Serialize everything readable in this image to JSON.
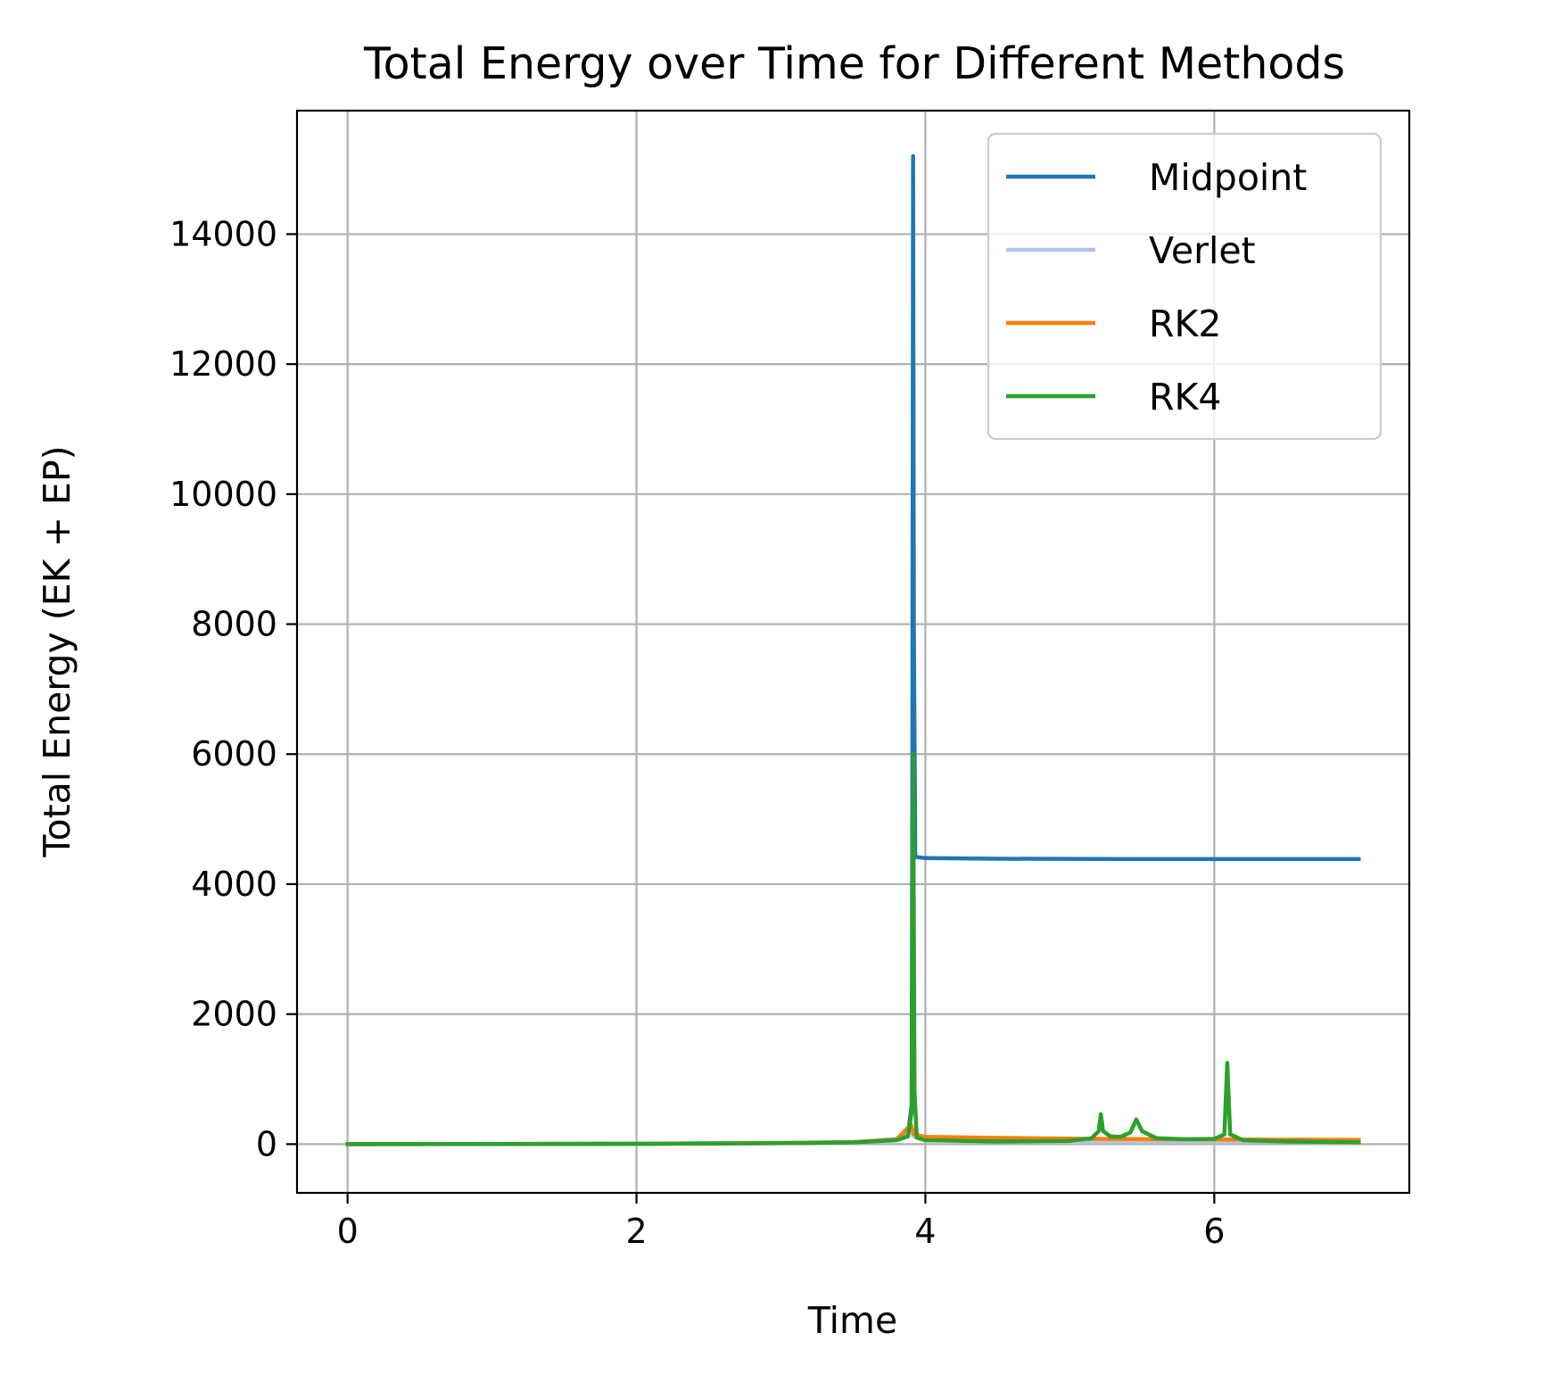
{
  "chart_data": {
    "type": "line",
    "title": "Total Energy over Time for Different Methods",
    "xlabel": "Time",
    "ylabel": "Total Energy (EK + EP)",
    "xlim": [
      -0.35,
      7.35
    ],
    "ylim": [
      -750,
      15900
    ],
    "xticks": [
      0,
      2,
      4,
      6
    ],
    "yticks": [
      0,
      2000,
      4000,
      6000,
      8000,
      10000,
      12000,
      14000
    ],
    "grid": true,
    "legend_position": "top-right",
    "series": [
      {
        "name": "Midpoint",
        "color": "#1f77b4",
        "points": [
          [
            0,
            0
          ],
          [
            1,
            2
          ],
          [
            2,
            5
          ],
          [
            3,
            15
          ],
          [
            3.5,
            30
          ],
          [
            3.8,
            70
          ],
          [
            3.88,
            150
          ],
          [
            3.905,
            600
          ],
          [
            3.91,
            6000
          ],
          [
            3.915,
            15200
          ],
          [
            3.92,
            8000
          ],
          [
            3.93,
            4420
          ],
          [
            4.0,
            4400
          ],
          [
            4.5,
            4390
          ],
          [
            5.5,
            4385
          ],
          [
            7.0,
            4385
          ]
        ]
      },
      {
        "name": "Verlet",
        "color": "#aec7e8",
        "points": [
          [
            0,
            0
          ],
          [
            2,
            5
          ],
          [
            3.5,
            28
          ],
          [
            3.85,
            90
          ],
          [
            3.9,
            200
          ],
          [
            3.92,
            120
          ],
          [
            4.0,
            60
          ],
          [
            5.0,
            50
          ],
          [
            6.0,
            45
          ],
          [
            7.0,
            40
          ]
        ]
      },
      {
        "name": "RK2",
        "color": "#ff7f0e",
        "points": [
          [
            0,
            0
          ],
          [
            1,
            2
          ],
          [
            2,
            5
          ],
          [
            3,
            15
          ],
          [
            3.5,
            30
          ],
          [
            3.8,
            70
          ],
          [
            3.9,
            300
          ],
          [
            3.92,
            150
          ],
          [
            4.0,
            110
          ],
          [
            4.5,
            95
          ],
          [
            5.0,
            85
          ],
          [
            5.2,
            80
          ],
          [
            5.5,
            78
          ],
          [
            6.0,
            72
          ],
          [
            6.5,
            68
          ],
          [
            7.0,
            65
          ]
        ]
      },
      {
        "name": "RK4",
        "color": "#2ca02c",
        "points": [
          [
            0,
            0
          ],
          [
            1,
            2
          ],
          [
            2,
            5
          ],
          [
            3,
            15
          ],
          [
            3.5,
            30
          ],
          [
            3.8,
            60
          ],
          [
            3.88,
            120
          ],
          [
            3.905,
            500
          ],
          [
            3.915,
            6000
          ],
          [
            3.925,
            800
          ],
          [
            3.94,
            100
          ],
          [
            4.0,
            60
          ],
          [
            4.5,
            40
          ],
          [
            5.0,
            50
          ],
          [
            5.15,
            90
          ],
          [
            5.2,
            200
          ],
          [
            5.215,
            460
          ],
          [
            5.23,
            200
          ],
          [
            5.28,
            120
          ],
          [
            5.35,
            110
          ],
          [
            5.42,
            180
          ],
          [
            5.46,
            380
          ],
          [
            5.5,
            200
          ],
          [
            5.6,
            90
          ],
          [
            5.8,
            75
          ],
          [
            6.0,
            80
          ],
          [
            6.07,
            150
          ],
          [
            6.09,
            1250
          ],
          [
            6.11,
            150
          ],
          [
            6.2,
            60
          ],
          [
            6.5,
            40
          ],
          [
            7.0,
            30
          ]
        ]
      }
    ]
  }
}
